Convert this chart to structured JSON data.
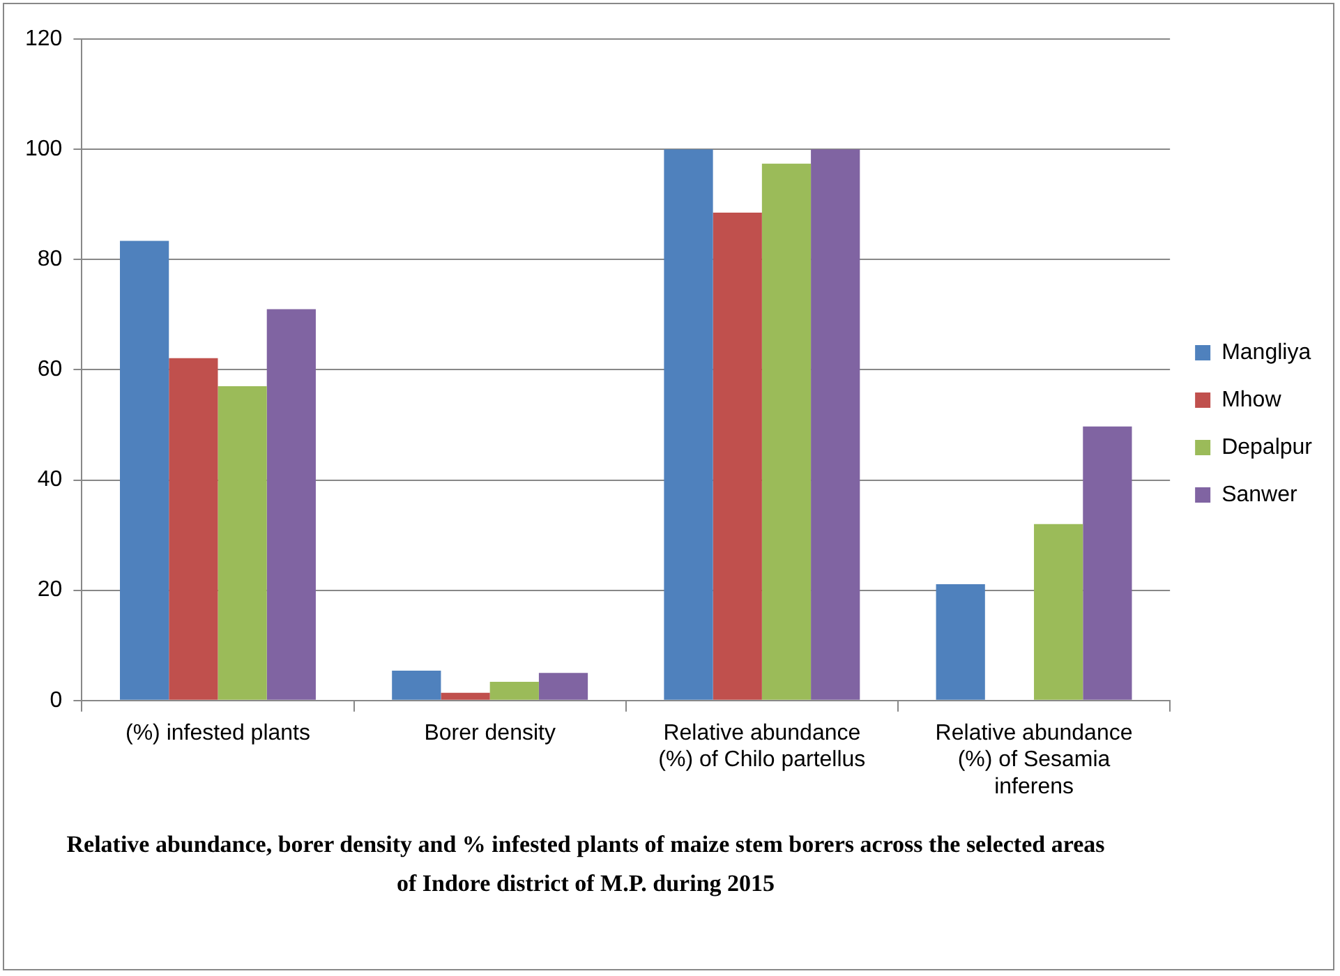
{
  "chart_data": {
    "type": "bar",
    "title": "Relative abundance, borer density and % infested plants of maize stem borers across the selected areas of Indore district of M.P. during 2015",
    "categories": [
      "(%) infested plants",
      "Borer density",
      "Relative abundance (%) of Chilo partellus",
      "Relative abundance (%) of Sesamia inferens"
    ],
    "series": [
      {
        "name": "Mangliya",
        "color": "#4f81bd",
        "values": [
          83.4,
          5.4,
          100,
          21.1
        ]
      },
      {
        "name": "Mhow",
        "color": "#c0504d",
        "values": [
          62.1,
          1.4,
          88.5,
          0
        ]
      },
      {
        "name": "Depalpur",
        "color": "#9bbb59",
        "values": [
          57.0,
          3.4,
          97.4,
          32.0
        ]
      },
      {
        "name": "Sanwer",
        "color": "#8064a2",
        "values": [
          71.0,
          5.0,
          100,
          49.7
        ]
      }
    ],
    "ylim": [
      0,
      120
    ],
    "yticks": [
      0,
      20,
      40,
      60,
      80,
      100,
      120
    ],
    "grid": "y",
    "legend": "right"
  }
}
